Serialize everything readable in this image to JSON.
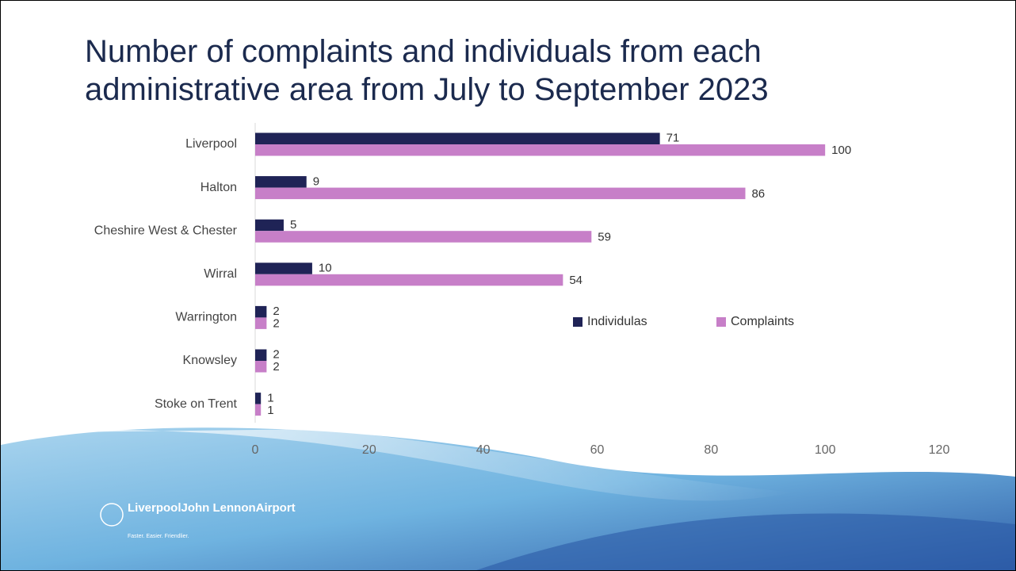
{
  "chart_data": {
    "type": "hbar",
    "title": "Number of complaints and individuals from each administrative area from July to September 2023",
    "categories": [
      "Liverpool",
      "Halton",
      "Cheshire West & Chester",
      "Wirral",
      "Warrington",
      "Knowsley",
      "Stoke on Trent"
    ],
    "series": [
      {
        "name": "Individulas",
        "color": "#1f2356",
        "values": [
          71,
          9,
          5,
          10,
          2,
          2,
          1
        ]
      },
      {
        "name": "Complaints",
        "color": "#c77fc8",
        "values": [
          100,
          86,
          59,
          54,
          2,
          2,
          1
        ]
      }
    ],
    "xlim": [
      0,
      120
    ],
    "xticks": [
      0,
      20,
      40,
      60,
      80,
      100,
      120
    ],
    "grid": false,
    "legend": "right"
  },
  "logo": {
    "name": "LiverpoolJohn LennonAirport",
    "tagline": "Faster. Easier. Friendlier."
  }
}
